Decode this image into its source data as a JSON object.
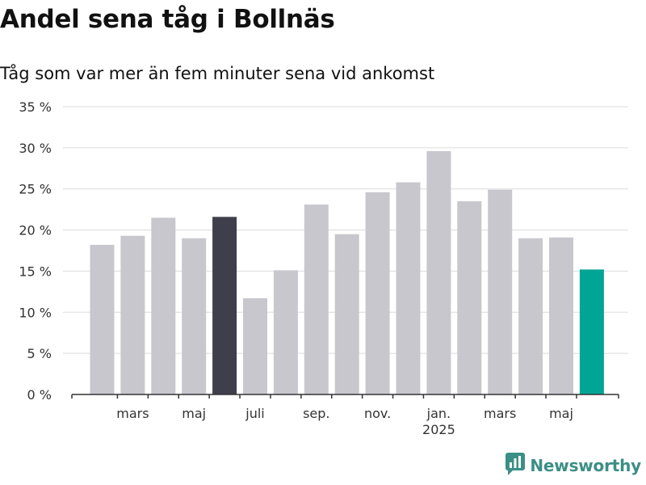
{
  "title": "Andel sena tåg i Bollnäs",
  "subtitle": "Tåg som var mer än fem minuter sena vid ankomst",
  "brand": {
    "name": "Newsworthy",
    "icon": "newsworthy-logo-icon",
    "color": "#3b8f86"
  },
  "chart_data": {
    "type": "bar",
    "categories": [
      "2024-02",
      "2024-03",
      "2024-04",
      "2024-05",
      "2024-06",
      "2024-07",
      "2024-08",
      "2024-09",
      "2024-10",
      "2024-11",
      "2024-12",
      "2025-01",
      "2025-02",
      "2025-03",
      "2025-04",
      "2025-05",
      "2025-06"
    ],
    "values": [
      18.2,
      19.3,
      21.5,
      19.0,
      21.6,
      11.7,
      15.1,
      23.1,
      19.5,
      24.6,
      25.8,
      29.6,
      23.5,
      24.9,
      19.0,
      19.1,
      15.2
    ],
    "colors": [
      "#c8c7ce",
      "#c8c7ce",
      "#c8c7ce",
      "#c8c7ce",
      "#3f3e4b",
      "#c8c7ce",
      "#c8c7ce",
      "#c8c7ce",
      "#c8c7ce",
      "#c8c7ce",
      "#c8c7ce",
      "#c8c7ce",
      "#c8c7ce",
      "#c8c7ce",
      "#c8c7ce",
      "#c8c7ce",
      "#00a596"
    ],
    "highlight_colors": {
      "default": "#c8c7ce",
      "previous_year": "#3f3e4b",
      "latest": "#00a596"
    },
    "ylim": [
      0,
      35
    ],
    "yticks": [
      0,
      5,
      10,
      15,
      20,
      25,
      30,
      35
    ],
    "y_tick_suffix": " %",
    "x_tick_labels": [
      {
        "month": "2024-03",
        "label": "mars"
      },
      {
        "month": "2024-05",
        "label": "maj"
      },
      {
        "month": "2024-07",
        "label": "juli"
      },
      {
        "month": "2024-09",
        "label": "sep."
      },
      {
        "month": "2024-11",
        "label": "nov."
      },
      {
        "month": "2025-01",
        "label": "jan.",
        "sublabel": "2025"
      },
      {
        "month": "2025-03",
        "label": "mars"
      },
      {
        "month": "2025-05",
        "label": "maj"
      }
    ],
    "xlabel": "",
    "ylabel": "",
    "grid": true,
    "legend": "none"
  }
}
